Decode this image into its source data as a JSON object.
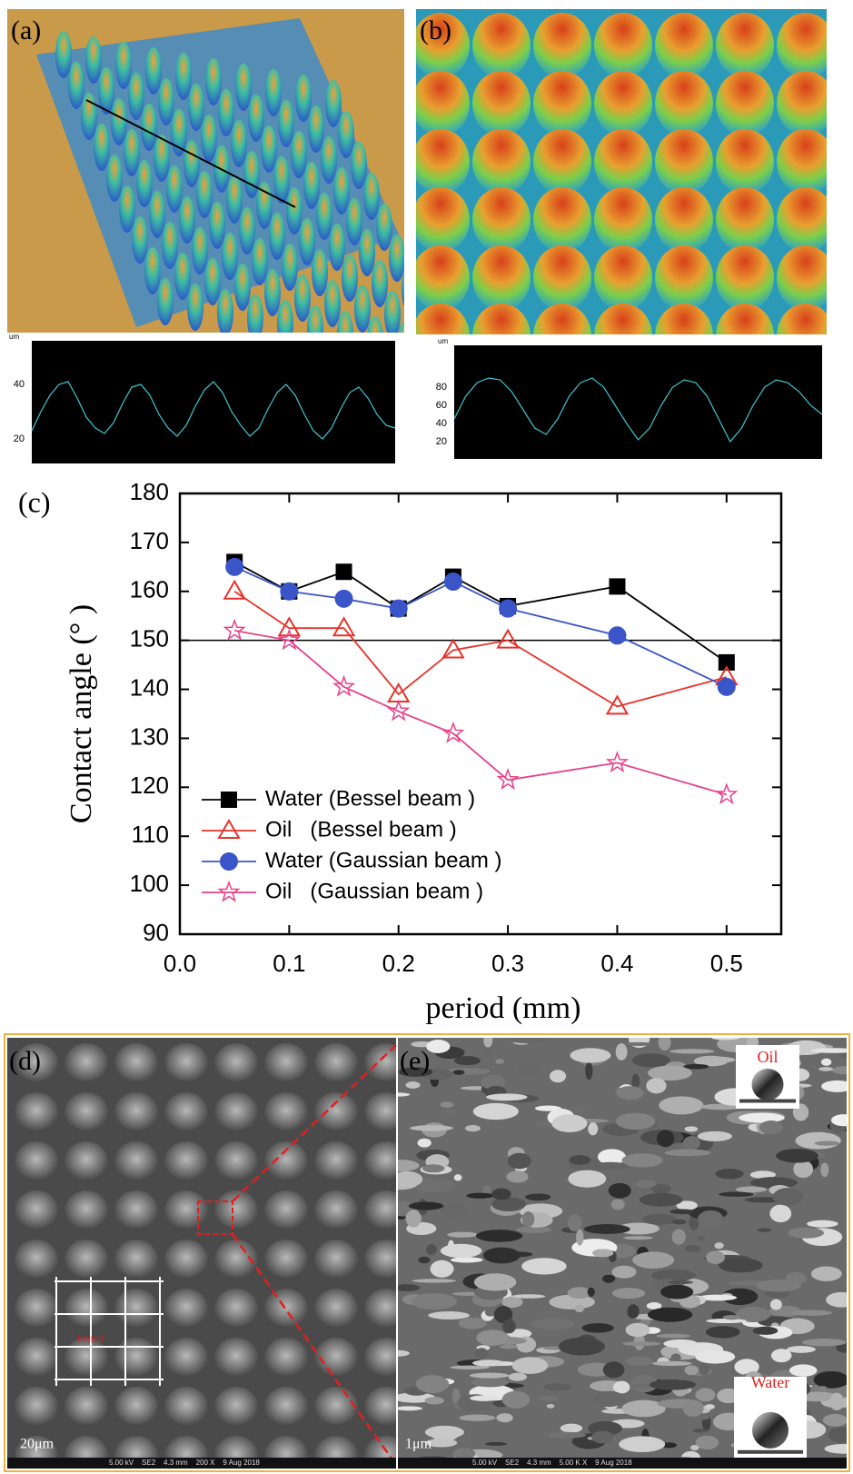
{
  "panels": [
    {
      "label": "(a)"
    },
    {
      "label": "(b)"
    },
    {
      "label": "(c)"
    },
    {
      "label": "(d)",
      "inset_label": "Period",
      "scale_bar": "20μm",
      "footer": "5.00 kV    SE2    4.3 mm    200 X    9 Aug 2018"
    },
    {
      "label": "(e)",
      "inset_top": "Oil",
      "inset_bottom": "Water",
      "scale_bar": "1μm",
      "footer": "5.00 kV    SE2    4.3 mm    5.00 K X    9 Aug 2018"
    }
  ],
  "chart_data": [
    {
      "type": "line",
      "y_unit": "um",
      "background": "#000000",
      "color": "#3fc6d0",
      "x": [
        0,
        1,
        2,
        3,
        4,
        5,
        6,
        7,
        8,
        9,
        10,
        11,
        12,
        13,
        14,
        15,
        16,
        17,
        18,
        19,
        20,
        21,
        22,
        23,
        24,
        25,
        26,
        27,
        28,
        29,
        30,
        31,
        32,
        33,
        34,
        35,
        36,
        37,
        38,
        39,
        40
      ],
      "values": [
        23,
        30,
        36,
        40,
        41,
        35,
        28,
        24,
        22,
        26,
        33,
        39,
        40,
        36,
        29,
        24,
        21,
        25,
        32,
        38,
        41,
        37,
        30,
        25,
        21,
        24,
        31,
        37,
        40,
        36,
        29,
        23,
        20,
        24,
        31,
        37,
        39,
        35,
        29,
        25,
        24
      ],
      "xlim": [
        0,
        40
      ],
      "ylim": [
        11,
        56
      ],
      "yticks": [
        20,
        40
      ]
    },
    {
      "type": "line",
      "y_unit": "um",
      "background": "#000000",
      "color": "#3fc6d0",
      "x": [
        0,
        1,
        2,
        3,
        4,
        5,
        6,
        7,
        8,
        9,
        10,
        11,
        12,
        13,
        14,
        15,
        16,
        17,
        18,
        19,
        20,
        21,
        22,
        23,
        24,
        25,
        26,
        27,
        28,
        29,
        30,
        31,
        32
      ],
      "values": [
        45,
        70,
        85,
        90,
        88,
        75,
        55,
        35,
        28,
        45,
        70,
        85,
        90,
        80,
        60,
        40,
        22,
        35,
        60,
        80,
        88,
        85,
        70,
        45,
        20,
        35,
        60,
        80,
        88,
        85,
        75,
        60,
        50
      ],
      "xlim": [
        0,
        32
      ],
      "ylim": [
        1,
        126
      ],
      "yticks": [
        20,
        40,
        60,
        80
      ]
    },
    {
      "type": "line",
      "xlabel": "period (mm)",
      "ylabel": "Contact angle (° )",
      "x": [
        0.05,
        0.1,
        0.15,
        0.2,
        0.25,
        0.3,
        0.4,
        0.5
      ],
      "series": [
        {
          "name": "Water (Bessel beam )",
          "color": "#000000",
          "marker": "square",
          "filled": true,
          "values": [
            166,
            160,
            164,
            156.5,
            163,
            157,
            161,
            145.5
          ]
        },
        {
          "name": "Oil   (Bessel beam )",
          "color": "#e8322a",
          "marker": "triangle",
          "filled": false,
          "values": [
            160,
            152.5,
            152.5,
            139,
            148,
            150,
            136.5,
            142.5
          ]
        },
        {
          "name": "Water (Gaussian beam )",
          "color": "#3a55c8",
          "marker": "circle",
          "filled": true,
          "values": [
            165,
            160,
            158.5,
            156.5,
            162,
            156.5,
            151,
            140.5
          ]
        },
        {
          "name": "Oil   (Gaussian beam )",
          "color": "#e8408c",
          "marker": "star",
          "filled": false,
          "values": [
            152,
            150,
            140.5,
            135.5,
            131,
            121.5,
            125,
            118.5
          ]
        }
      ],
      "reference_line": 150,
      "xlim": [
        0,
        0.55
      ],
      "ylim": [
        90,
        180
      ],
      "xticks": [
        {
          "value": 0,
          "label": "0.0"
        },
        0.1,
        0.2,
        0.3,
        0.4,
        0.5
      ],
      "yticks": [
        90,
        100,
        110,
        120,
        130,
        140,
        150,
        160,
        170,
        180
      ],
      "legend": "lower left"
    }
  ]
}
